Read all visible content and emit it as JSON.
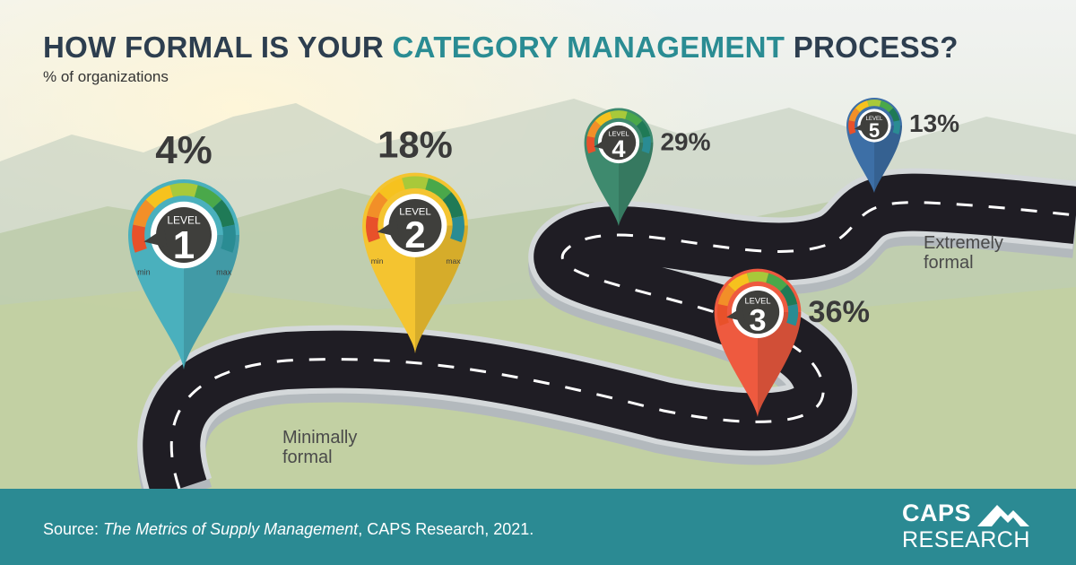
{
  "header": {
    "title_part1": "HOW FORMAL IS YOUR ",
    "title_accent": "CATEGORY MANAGEMENT",
    "title_part2": " PROCESS?",
    "subtitle": "% of organizations"
  },
  "chart_data": {
    "type": "bar",
    "title": "HOW FORMAL IS YOUR CATEGORY MANAGEMENT PROCESS?",
    "subtitle": "% of organizations",
    "categories": [
      "1",
      "2",
      "3",
      "4",
      "5"
    ],
    "values": [
      4,
      18,
      36,
      29,
      13
    ],
    "value_labels": [
      "4%",
      "18%",
      "36%",
      "29%",
      "13%"
    ],
    "level_word": "LEVEL",
    "gauge_min_label": "min",
    "gauge_max_label": "max",
    "scale_start_label": [
      "Minimally",
      "formal"
    ],
    "scale_end_label": [
      "Extremely",
      "formal"
    ],
    "pin_colors": [
      "#4ab0bd",
      "#f4c430",
      "#ee5a3f",
      "#3e8a6e",
      "#3d6fa6"
    ]
  },
  "footer": {
    "source_prefix": "Source: ",
    "source_title": "The Metrics of Supply Management",
    "source_suffix": ", CAPS Research, 2021.",
    "logo_line1": "CAPS",
    "logo_line2": "RESEARCH"
  }
}
